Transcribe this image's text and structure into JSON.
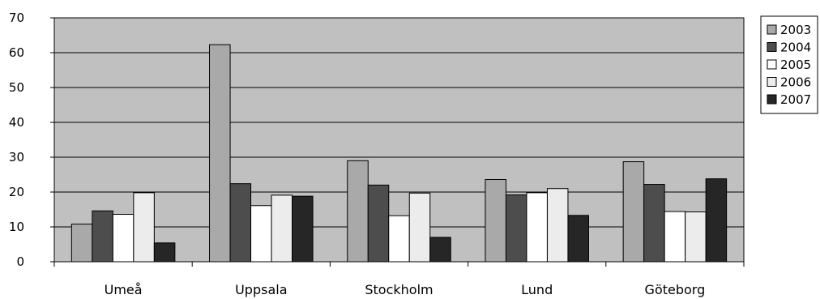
{
  "chart_data": {
    "type": "bar",
    "categories": [
      "Umeå",
      "Uppsala",
      "Stockholm",
      "Lund",
      "Göteborg"
    ],
    "series": [
      {
        "name": "2003",
        "values": [
          10.8,
          62.3,
          29.0,
          23.6,
          28.7
        ],
        "color": "#a9a9a9"
      },
      {
        "name": "2004",
        "values": [
          14.6,
          22.4,
          22.0,
          19.2,
          22.2
        ],
        "color": "#4d4d4d"
      },
      {
        "name": "2005",
        "values": [
          13.6,
          16.1,
          13.2,
          19.8,
          14.4
        ],
        "color": "#ffffff"
      },
      {
        "name": "2006",
        "values": [
          19.8,
          19.1,
          19.7,
          21.0,
          14.3
        ],
        "color": "#ececec"
      },
      {
        "name": "2007",
        "values": [
          5.4,
          18.8,
          7.0,
          13.3,
          23.8
        ],
        "color": "#262626"
      }
    ],
    "ylim": [
      0,
      70
    ],
    "yticks": [
      "0",
      "10",
      "20",
      "30",
      "40",
      "50",
      "60",
      "70"
    ],
    "title": "",
    "xlabel": "",
    "ylabel": "",
    "grid": true,
    "legend_position": "top-right",
    "plot_background": "#c0c0c0"
  }
}
